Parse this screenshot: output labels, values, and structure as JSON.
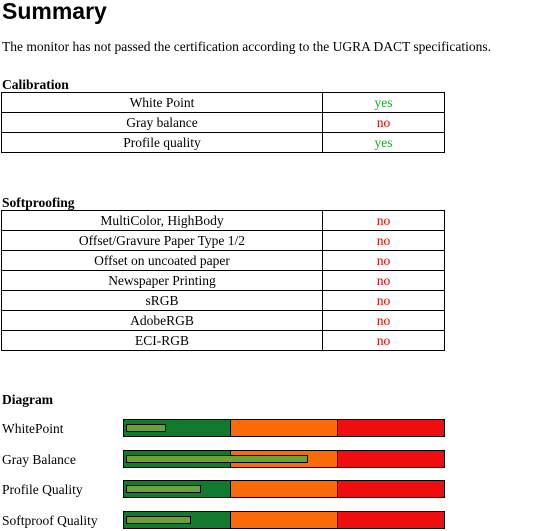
{
  "title": "Summary",
  "intro": "The monitor has not passed the certification according to the UGRA DACT specifications.",
  "calibration": {
    "heading": "Calibration",
    "rows": [
      {
        "label": "White Point",
        "value": "yes"
      },
      {
        "label": "Gray balance",
        "value": "no"
      },
      {
        "label": "Profile quality",
        "value": "yes"
      }
    ]
  },
  "softproofing": {
    "heading": "Softproofing",
    "rows": [
      {
        "label": "MultiColor, HighBody",
        "value": "no"
      },
      {
        "label": "Offset/Gravure Paper Type 1/2",
        "value": "no"
      },
      {
        "label": "Offset on uncoated paper",
        "value": "no"
      },
      {
        "label": "Newspaper Printing",
        "value": "no"
      },
      {
        "label": "sRGB",
        "value": "no"
      },
      {
        "label": "AdobeRGB",
        "value": "no"
      },
      {
        "label": "ECI-RGB",
        "value": "no"
      }
    ]
  },
  "diagram": {
    "heading": "Diagram",
    "zone_colors": [
      "#117a2c",
      "#fb6a09",
      "#ee0e0e"
    ],
    "indicator_color": "#6aa23a",
    "items": [
      {
        "label": "WhitePoint",
        "level": 0.12
      },
      {
        "label": "Gray Balance",
        "level": 0.57
      },
      {
        "label": "Profile Quality",
        "level": 0.23
      },
      {
        "label": "Softproof Quality",
        "level": 0.2
      }
    ]
  },
  "colors": {
    "yes": "#12b31a",
    "no": "#e00000"
  }
}
